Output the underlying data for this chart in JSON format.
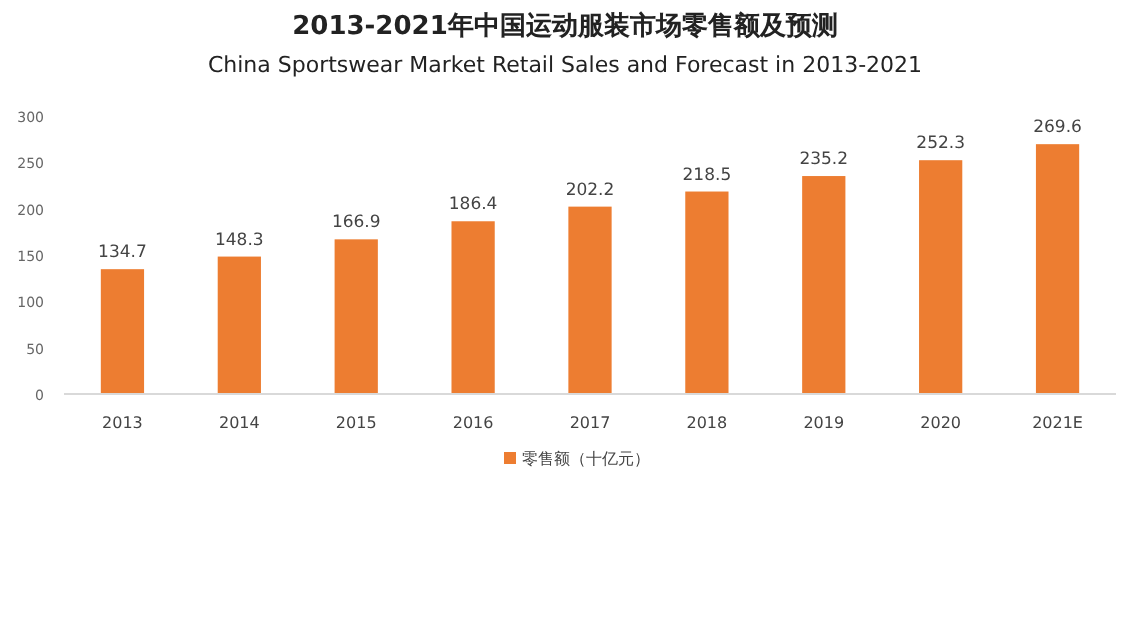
{
  "chart_data": {
    "type": "bar",
    "title": "2013-2021年中国运动服装市场零售额及预测",
    "subtitle": "China Sportswear Market Retail Sales and Forecast  in 2013-2021",
    "categories": [
      "2013",
      "2014",
      "2015",
      "2016",
      "2017",
      "2018",
      "2019",
      "2020",
      "2021E"
    ],
    "series": [
      {
        "name": "零售额（十亿元）",
        "color": "#ed7d31",
        "values": [
          134.7,
          148.3,
          166.9,
          186.4,
          202.2,
          218.5,
          235.2,
          252.3,
          269.6
        ]
      }
    ],
    "ylim": [
      0,
      300
    ],
    "yticks": [
      0,
      50,
      100,
      150,
      200,
      250,
      300
    ],
    "data_labels": true,
    "grid": false,
    "legend": "bottom"
  }
}
